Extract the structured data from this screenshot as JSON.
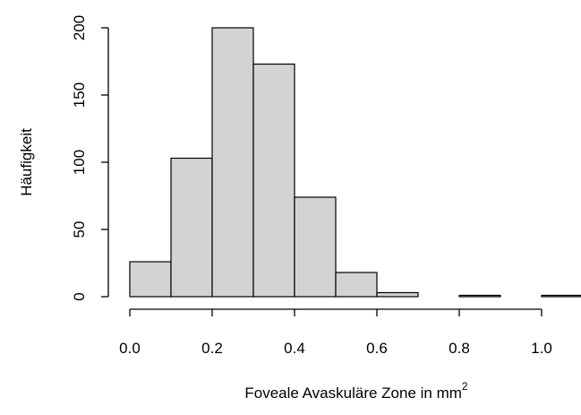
{
  "chart_data": {
    "type": "bar",
    "title": "",
    "xlabel": "Foveale Avaskuläre Zone in mm",
    "xlabel_superscript": "2",
    "ylabel": "Häufigkeit",
    "bins": [
      {
        "from": 0.0,
        "to": 0.1,
        "value": 26
      },
      {
        "from": 0.1,
        "to": 0.2,
        "value": 103
      },
      {
        "from": 0.2,
        "to": 0.3,
        "value": 200
      },
      {
        "from": 0.3,
        "to": 0.4,
        "value": 173
      },
      {
        "from": 0.4,
        "to": 0.5,
        "value": 74
      },
      {
        "from": 0.5,
        "to": 0.6,
        "value": 18
      },
      {
        "from": 0.6,
        "to": 0.7,
        "value": 3
      },
      {
        "from": 0.7,
        "to": 0.8,
        "value": 0
      },
      {
        "from": 0.8,
        "to": 0.9,
        "value": 1
      },
      {
        "from": 0.9,
        "to": 1.0,
        "value": 0
      },
      {
        "from": 1.0,
        "to": 1.1,
        "value": 1
      }
    ],
    "x_ticks": [
      "0.0",
      "0.2",
      "0.4",
      "0.6",
      "0.8",
      "1.0"
    ],
    "y_ticks": [
      "0",
      "50",
      "100",
      "150",
      "200"
    ],
    "xlim": [
      0.0,
      1.1
    ],
    "ylim": [
      0,
      200
    ],
    "bar_fill": "#d3d3d3",
    "bar_stroke": "#000000",
    "grid": false
  }
}
